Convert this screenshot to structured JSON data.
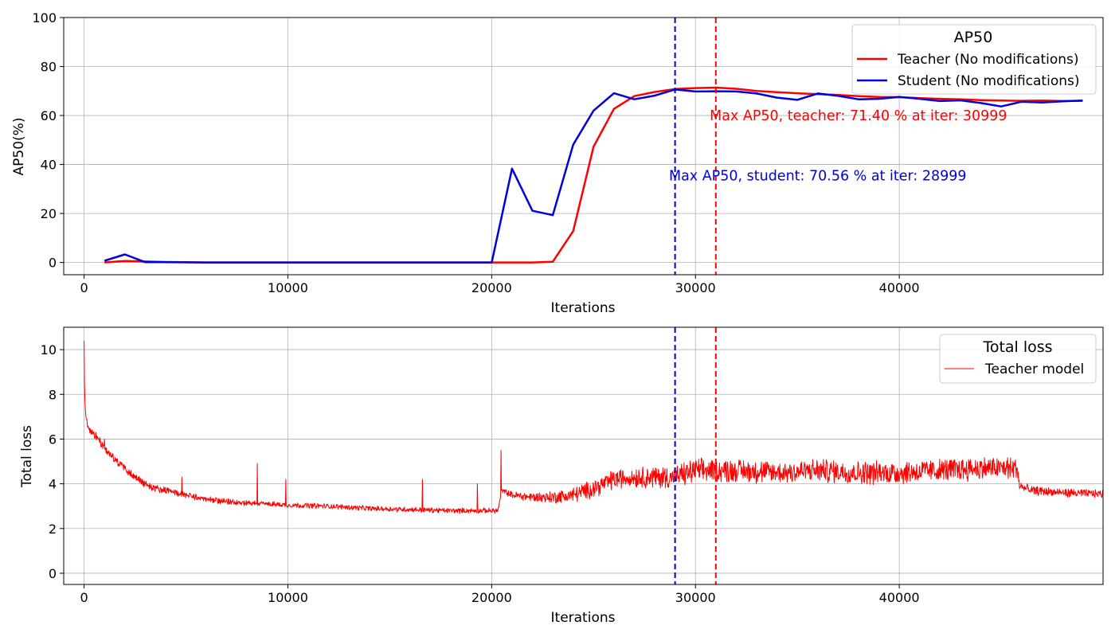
{
  "chart_data": [
    {
      "type": "line",
      "xlabel": "Iterations",
      "ylabel": "AP50(%)",
      "xlim": [
        -1000,
        50000
      ],
      "ylim": [
        -5,
        100
      ],
      "xticks": [
        0,
        10000,
        20000,
        30000,
        40000
      ],
      "yticks": [
        0,
        20,
        40,
        60,
        80,
        100
      ],
      "grid": true,
      "legend": {
        "title": "AP50",
        "position": "top-right"
      },
      "series": [
        {
          "name": "Teacher (No modifications)",
          "color": "#ff0000",
          "x": [
            1000,
            2000,
            3000,
            4000,
            6000,
            8000,
            10000,
            12000,
            14000,
            16000,
            18000,
            20000,
            21000,
            22000,
            23000,
            24000,
            25000,
            26000,
            27000,
            28000,
            29000,
            30000,
            31000,
            32000,
            33000,
            34000,
            35000,
            36000,
            37000,
            38000,
            39000,
            40000,
            41000,
            42000,
            43000,
            44000,
            45000,
            46000,
            47000,
            48000,
            49000
          ],
          "y": [
            0.0,
            0.6,
            0.4,
            0.2,
            0.0,
            0.0,
            0.0,
            0.0,
            0.0,
            0.0,
            0.0,
            0.0,
            0.0,
            0.0,
            0.3,
            12.8,
            47.3,
            62.7,
            67.9,
            69.6,
            70.8,
            71.2,
            71.4,
            70.9,
            70.0,
            69.5,
            69.1,
            68.7,
            68.4,
            67.9,
            67.6,
            67.5,
            67.1,
            66.8,
            66.6,
            66.3,
            66.1,
            66.0,
            66.1,
            65.9,
            66.0
          ]
        },
        {
          "name": "Student (No modifications)",
          "color": "#0000dd",
          "x": [
            1000,
            2000,
            3000,
            4000,
            6000,
            8000,
            10000,
            12000,
            14000,
            16000,
            18000,
            20000,
            21000,
            22000,
            23000,
            24000,
            25000,
            26000,
            27000,
            28000,
            29000,
            30000,
            31000,
            32000,
            33000,
            34000,
            35000,
            36000,
            37000,
            38000,
            39000,
            40000,
            41000,
            42000,
            43000,
            44000,
            45000,
            46000,
            47000,
            48000,
            49000
          ],
          "y": [
            0.7,
            3.3,
            0.1,
            0.1,
            0.0,
            0.0,
            0.0,
            0.0,
            0.0,
            0.0,
            0.0,
            0.0,
            38.3,
            21.1,
            19.3,
            48.1,
            62.0,
            69.1,
            66.6,
            68.1,
            70.6,
            69.8,
            69.9,
            69.8,
            69.0,
            67.3,
            66.4,
            69.0,
            68.0,
            66.6,
            66.8,
            67.6,
            66.8,
            65.9,
            66.2,
            65.1,
            63.7,
            65.6,
            65.3,
            65.8,
            66.1
          ]
        }
      ],
      "vlines": [
        {
          "x": 28999,
          "color": "#0000dd"
        },
        {
          "x": 30999,
          "color": "#ff0000"
        }
      ],
      "annotations": [
        {
          "text": "Max AP50, teacher: 71.40 % at iter: 30999",
          "x": 30700,
          "y": 58,
          "color": "#ff0000"
        },
        {
          "text": "Max AP50, student: 70.56 % at iter: 28999",
          "x": 28700,
          "y": 33.5,
          "color": "#0000dd"
        }
      ]
    },
    {
      "type": "line",
      "xlabel": "Iterations",
      "ylabel": "Total loss",
      "xlim": [
        -1000,
        50000
      ],
      "ylim": [
        -0.5,
        11
      ],
      "xticks": [
        0,
        10000,
        20000,
        30000,
        40000
      ],
      "yticks": [
        0,
        2,
        4,
        6,
        8,
        10
      ],
      "grid": true,
      "legend": {
        "title": "Total loss",
        "position": "top-right"
      },
      "series": [
        {
          "name": "Teacher model",
          "color": "#ff0000",
          "x_start": 0,
          "x_step": 20,
          "x_end": 50000,
          "anchors_x": [
            0,
            20,
            50,
            100,
            150,
            300,
            600,
            1000,
            1500,
            2000,
            2500,
            3000,
            3500,
            4000,
            5000,
            6000,
            7000,
            8000,
            9000,
            10000,
            12000,
            14000,
            16000,
            18000,
            19500,
            20300,
            20500,
            21000,
            22000,
            23000,
            24000,
            25000,
            26000,
            27000,
            28000,
            29000,
            30000,
            32000,
            34000,
            36000,
            38000,
            40000,
            42000,
            44000,
            45800,
            45900,
            46500,
            48000,
            50000
          ],
          "anchors_y": [
            10.4,
            8.5,
            7.5,
            7.0,
            6.7,
            6.4,
            6.1,
            5.6,
            5.1,
            4.7,
            4.3,
            4.0,
            3.8,
            3.7,
            3.5,
            3.3,
            3.2,
            3.15,
            3.1,
            3.05,
            3.0,
            2.9,
            2.85,
            2.8,
            2.8,
            2.8,
            3.7,
            3.5,
            3.4,
            3.4,
            3.5,
            3.8,
            4.2,
            4.3,
            4.3,
            4.3,
            4.6,
            4.6,
            4.5,
            4.6,
            4.5,
            4.5,
            4.6,
            4.7,
            4.7,
            3.9,
            3.7,
            3.6,
            3.55
          ],
          "noise_x": [
            0,
            3000,
            5000,
            10000,
            20400,
            25000,
            29000,
            45800,
            46000,
            50000
          ],
          "noise_amp": [
            0.15,
            0.15,
            0.12,
            0.1,
            0.1,
            0.35,
            0.45,
            0.45,
            0.18,
            0.15
          ],
          "spikes": [
            [
              8500,
              4.9
            ],
            [
              9900,
              4.2
            ],
            [
              16600,
              4.2
            ],
            [
              19300,
              4.0
            ],
            [
              20450,
              5.5
            ],
            [
              4800,
              4.3
            ],
            [
              1000,
              6.0
            ]
          ]
        }
      ],
      "vlines": [
        {
          "x": 28999,
          "color": "#0000dd"
        },
        {
          "x": 30999,
          "color": "#ff0000"
        }
      ]
    }
  ]
}
